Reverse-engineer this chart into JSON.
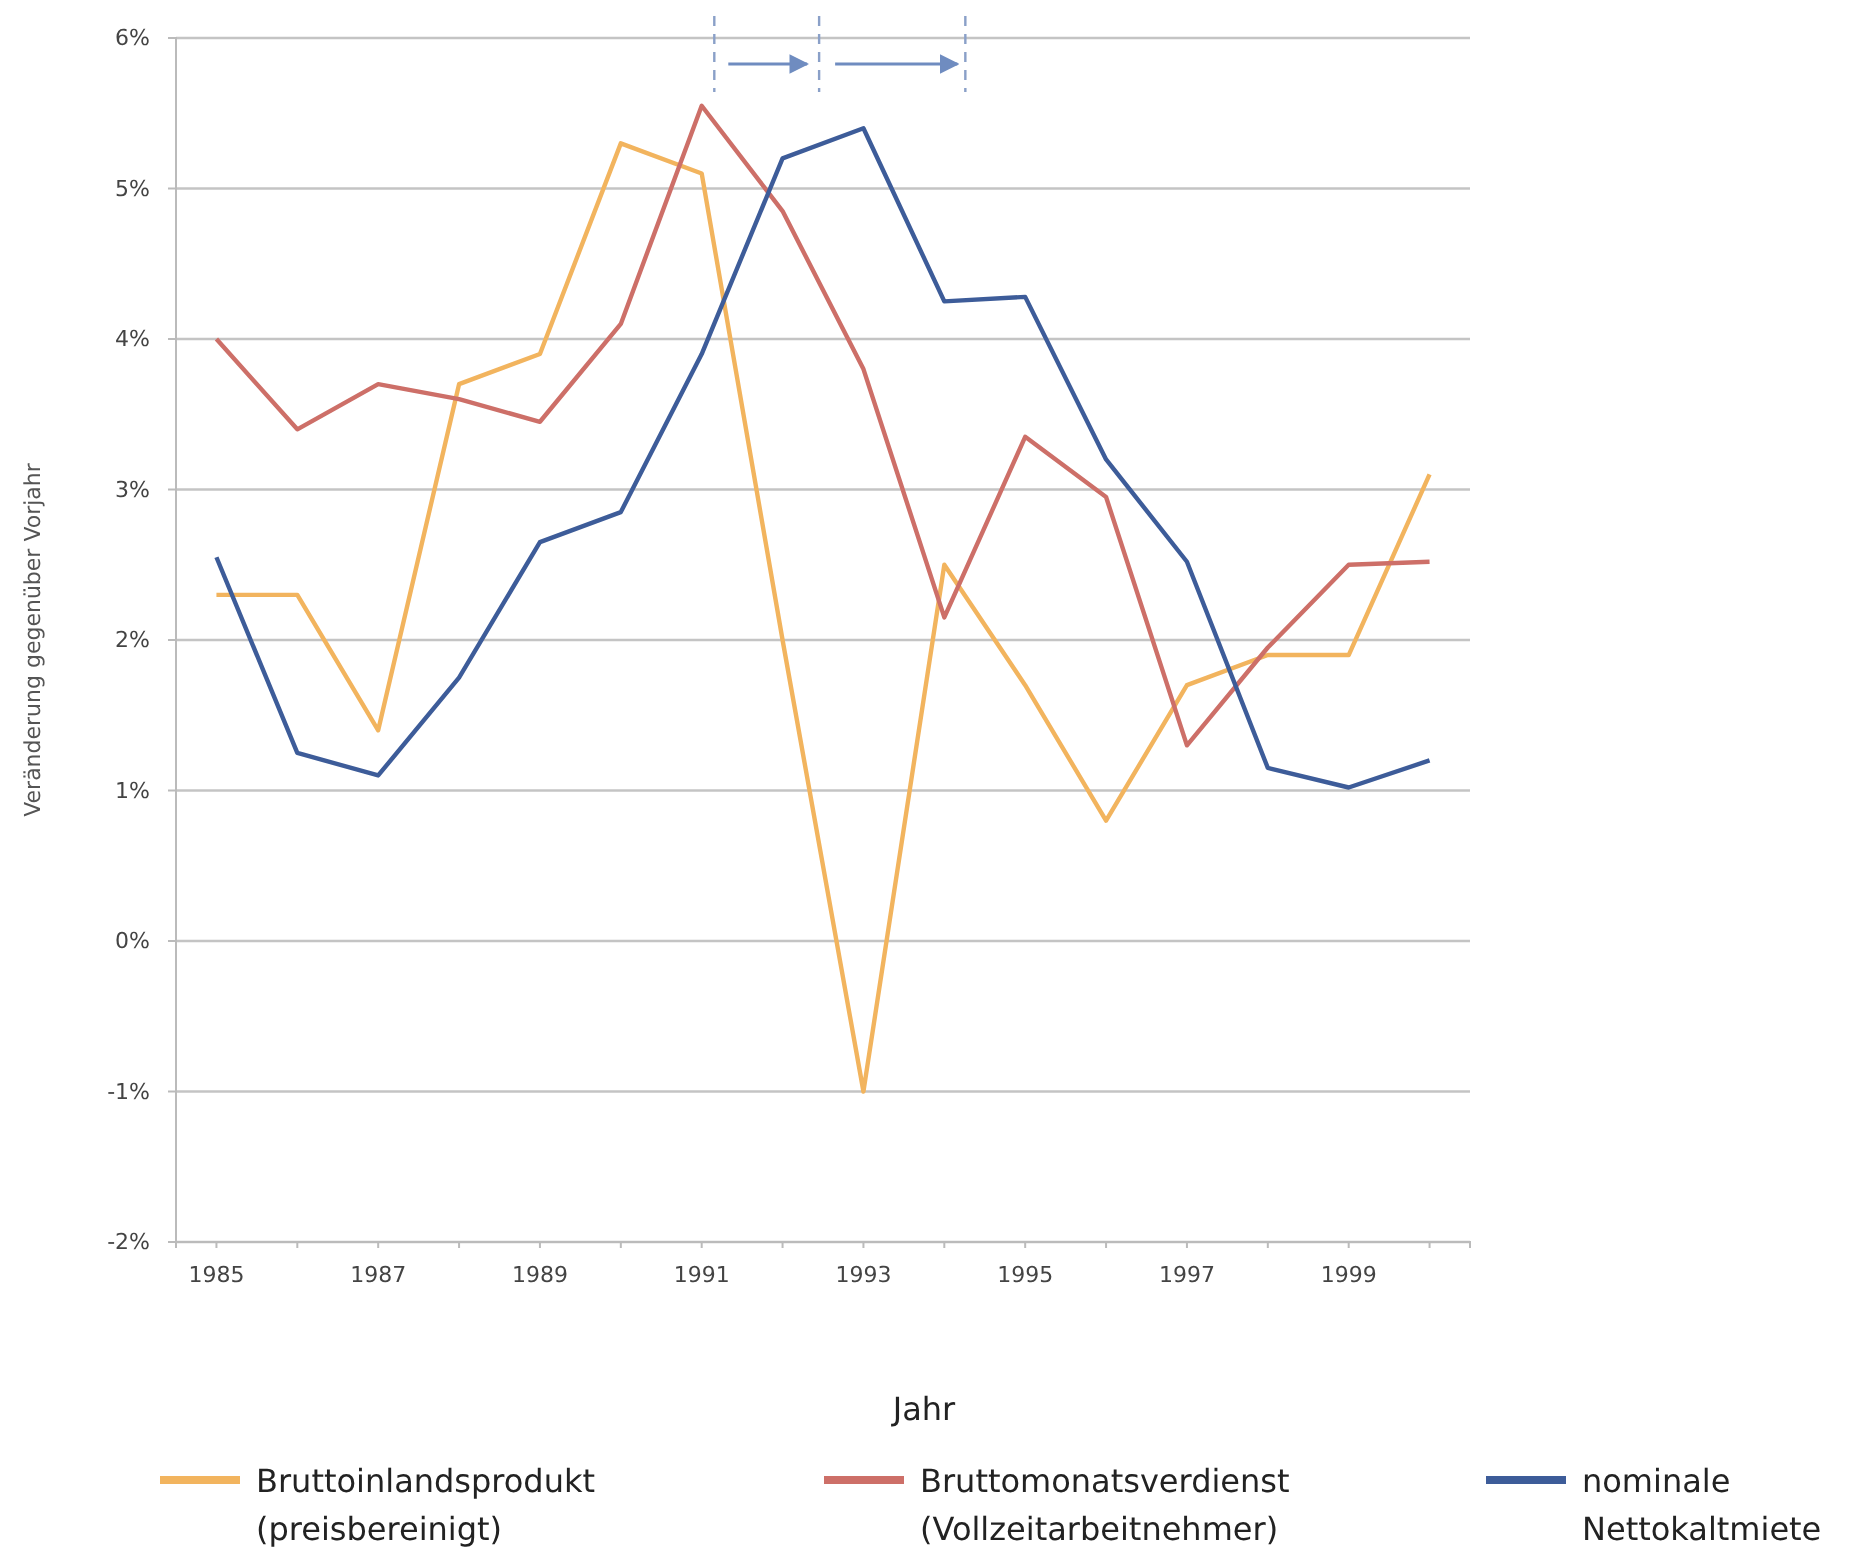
{
  "chart_data": {
    "type": "line",
    "xlabel": "Jahr",
    "ylabel": "Veränderung gegenüber Vorjahr",
    "categories": [
      "1985",
      null,
      "1987",
      null,
      "1989",
      null,
      "1991",
      null,
      "1993",
      null,
      "1995",
      null,
      "1997",
      null,
      "1999",
      null
    ],
    "series": [
      {
        "name": "Bruttoinlandsprodukt (preisbereinigt)",
        "color": "#f2b45e",
        "values": [
          2.3,
          2.3,
          1.4,
          3.7,
          3.9,
          5.3,
          5.1,
          2.0,
          -1.0,
          2.5,
          1.7,
          0.8,
          1.7,
          1.9,
          1.9,
          3.1
        ]
      },
      {
        "name": "Bruttomonatsverdienst (Vollzeitarbeitnehmer)",
        "color": "#cd6f68",
        "values": [
          4.0,
          3.4,
          3.7,
          3.6,
          3.45,
          4.1,
          5.55,
          4.85,
          3.8,
          2.15,
          3.35,
          2.95,
          1.3,
          1.95,
          2.5,
          2.52
        ]
      },
      {
        "name": "nominale Nettokaltmiete",
        "color": "#3d5c99",
        "values": [
          2.55,
          1.25,
          1.1,
          1.75,
          2.65,
          2.85,
          3.9,
          5.2,
          5.4,
          4.25,
          4.28,
          3.2,
          2.52,
          1.15,
          1.02,
          1.2
        ]
      }
    ],
    "ylim": [
      -2,
      6
    ],
    "yticks": [
      {
        "value": -2,
        "label": "-2%"
      },
      {
        "value": -1,
        "label": "-1%"
      },
      {
        "value": 0,
        "label": "0%"
      },
      {
        "value": 1,
        "label": "1%"
      },
      {
        "value": 2,
        "label": "2%"
      },
      {
        "value": 3,
        "label": "3%"
      },
      {
        "value": 4,
        "label": "4%"
      },
      {
        "value": 5,
        "label": "5%"
      },
      {
        "value": 6,
        "label": "6%"
      }
    ],
    "grid": "y",
    "legend": "bottom",
    "marker": "none",
    "line_style": "solid"
  }
}
